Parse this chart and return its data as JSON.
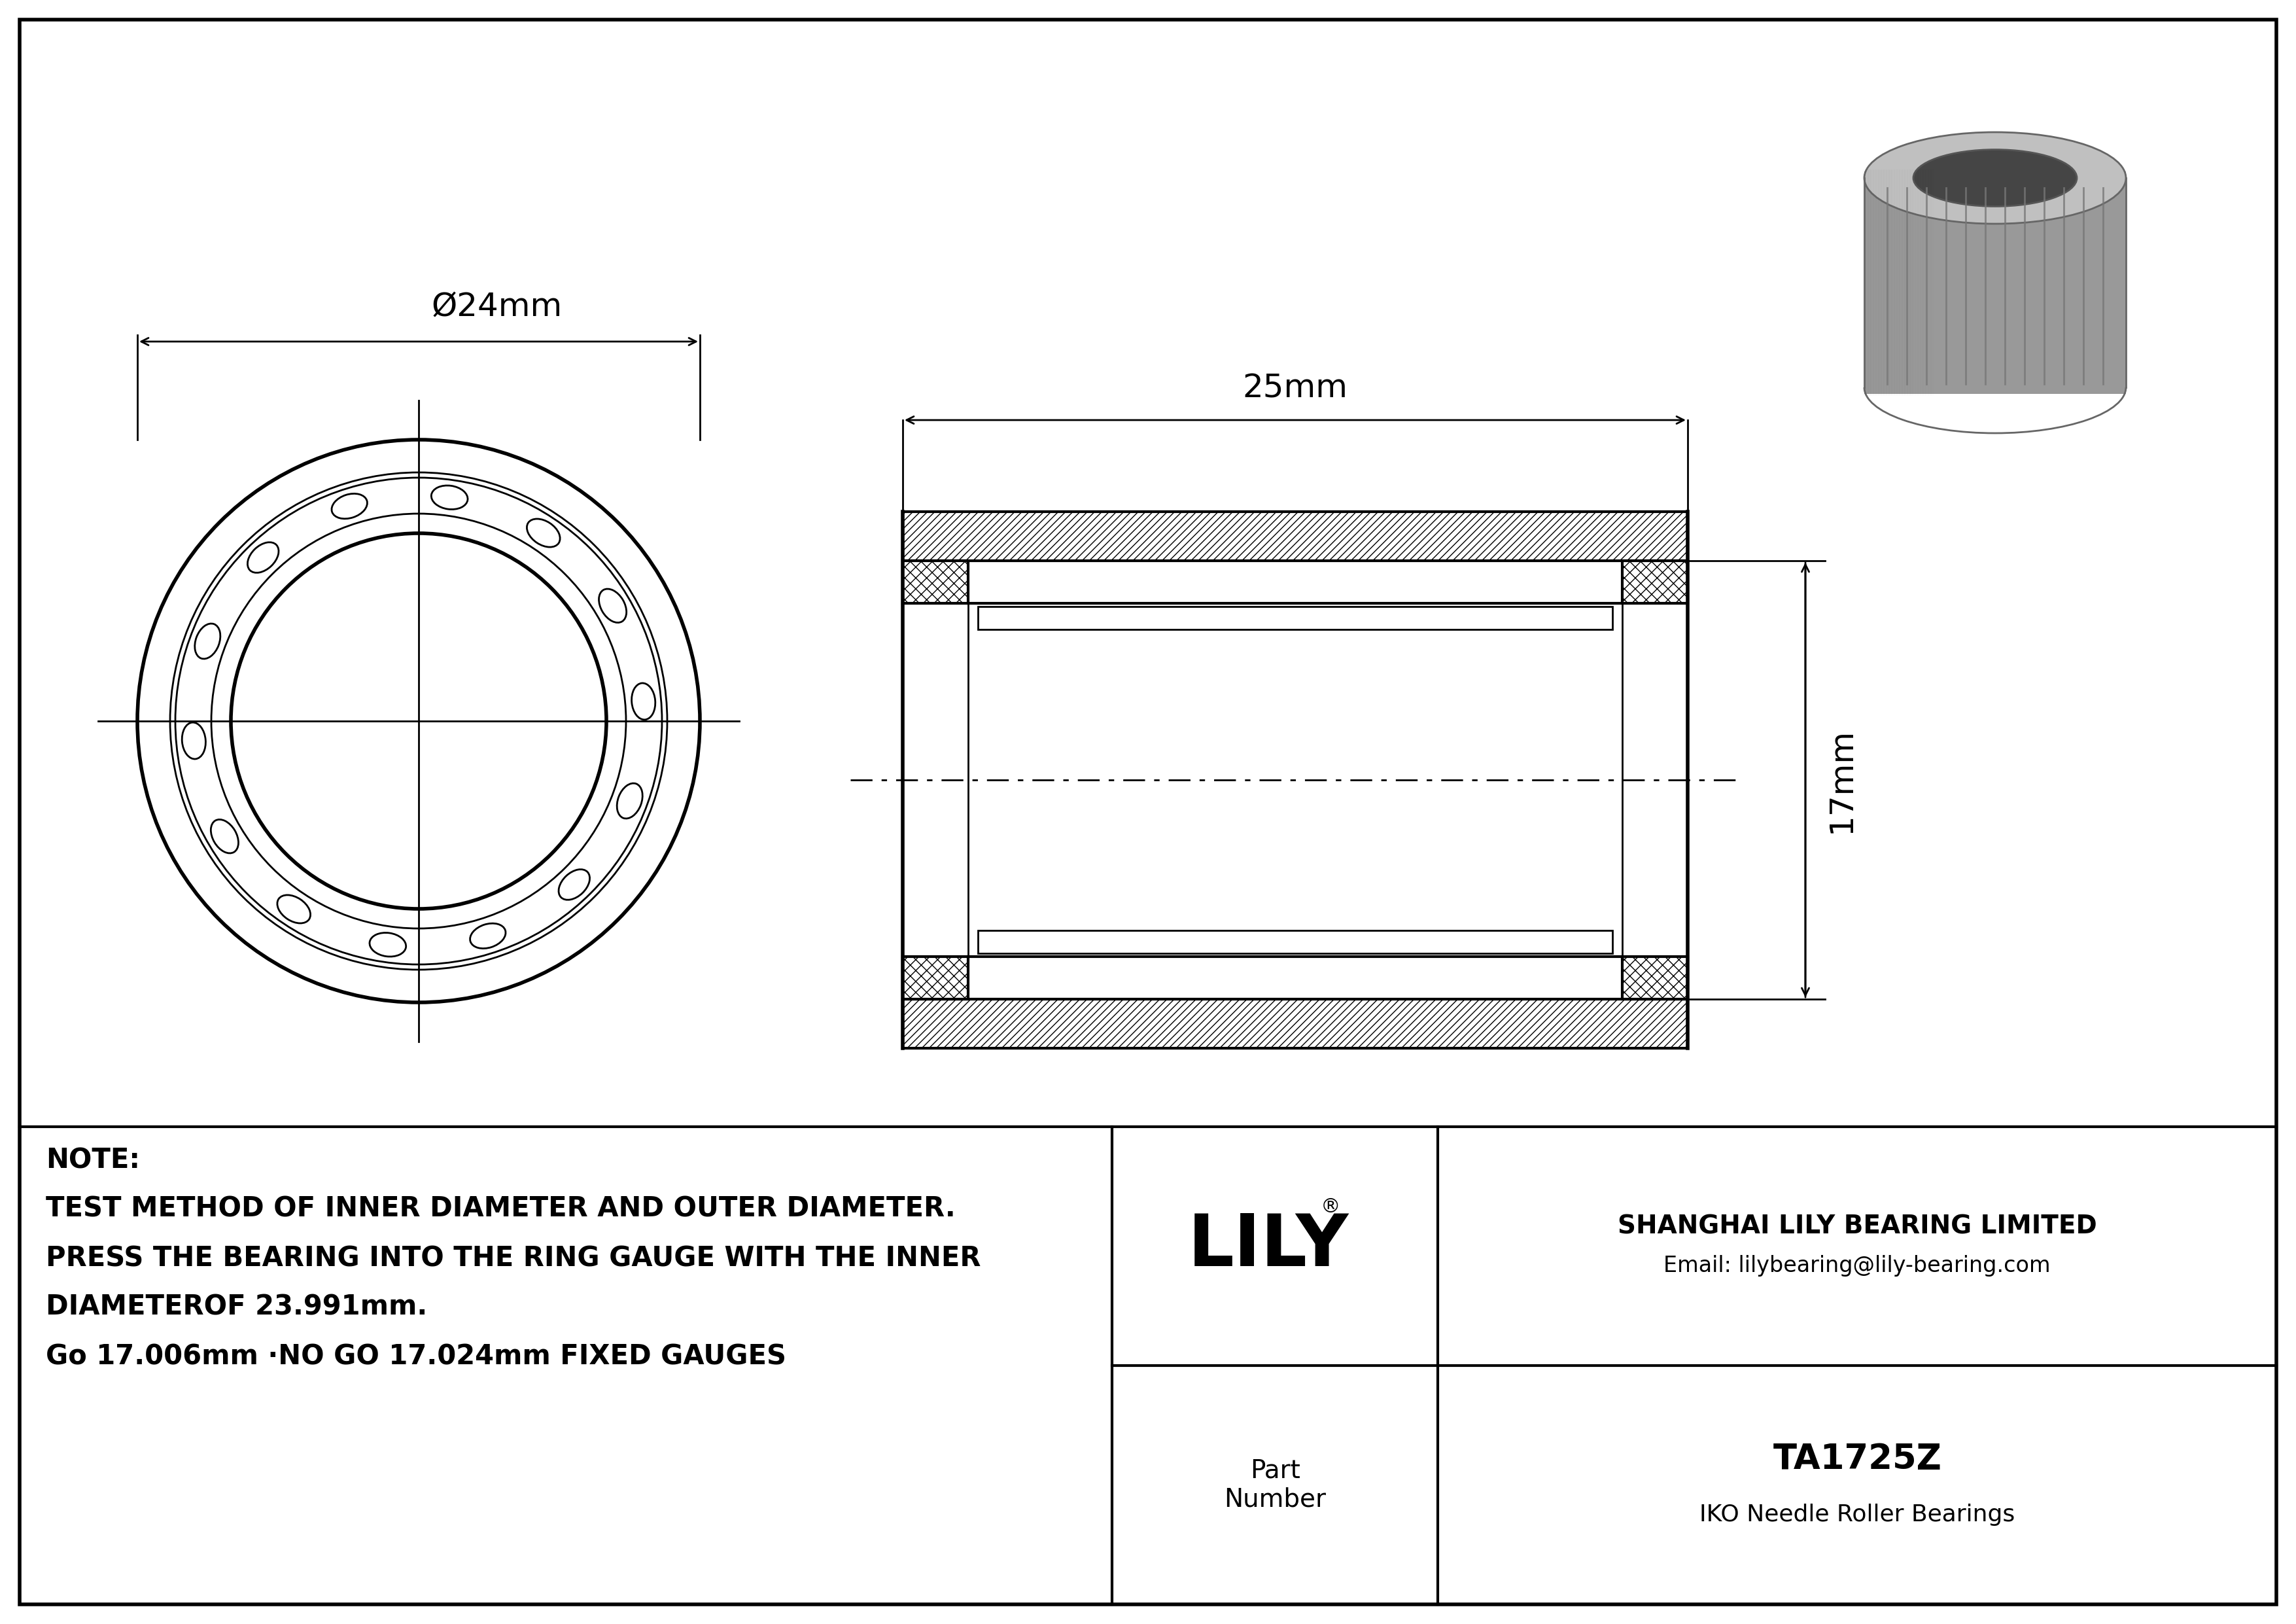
{
  "bg_color": "#ffffff",
  "line_color": "#000000",
  "note_line1": "NOTE:",
  "note_line2": "TEST METHOD OF INNER DIAMETER AND OUTER DIAMETER.",
  "note_line3": "PRESS THE BEARING INTO THE RING GAUGE WITH THE INNER",
  "note_line4": "DIAMETEROF 23.991mm.",
  "note_line5": "Go 17.006mm ·NO GO 17.024mm FIXED GAUGES",
  "company_name": "SHANGHAI LILY BEARING LIMITED",
  "company_email": "Email: lilybearing@lily-bearing.com",
  "part_label": "Part\nNumber",
  "part_number": "TA1725Z",
  "part_type": "IKO Needle Roller Bearings",
  "lily_logo": "LILY",
  "dim_od": "Ø24mm",
  "dim_width": "25mm",
  "dim_height": "17mm",
  "cyl_body_color": "#a0a0a0",
  "cyl_top_color": "#b8b8b8",
  "cyl_shadow": "#787878",
  "cyl_inner": "#606060"
}
